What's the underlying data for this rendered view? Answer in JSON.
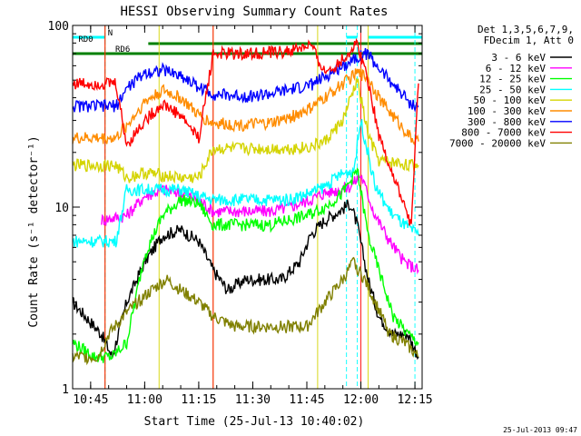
{
  "chart_data": {
    "type": "line",
    "title": "HESSI Observing Summary Count Rates",
    "xlabel": "Start Time (25-Jul-13 10:40:02)",
    "ylabel": "Count Rate (s⁻¹ detector⁻¹)",
    "y_scale": "log",
    "ylim": [
      1,
      100
    ],
    "xlim": [
      "10:40",
      "12:17"
    ],
    "x_ticks": [
      "10:45",
      "11:00",
      "11:15",
      "11:30",
      "11:45",
      "12:00",
      "12:15"
    ],
    "y_ticks": [
      "1",
      "10",
      "100"
    ],
    "grid": false,
    "legend_position": "right",
    "legend_header": [
      "Det 1,3,5,6,7,9,",
      "FDecim 1, Att 0"
    ],
    "footer": "25-Jul-2013 09:47",
    "series": [
      {
        "name": "3 - 6 keV",
        "color": "#000000",
        "x": [
          "10:40",
          "10:48",
          "10:51",
          "10:55",
          "11:00",
          "11:05",
          "11:10",
          "11:15",
          "11:19",
          "11:23",
          "11:28",
          "11:33",
          "11:38",
          "11:43",
          "11:46",
          "11:50",
          "11:54",
          "11:57",
          "11:59",
          "12:02",
          "12:05",
          "12:09",
          "12:13",
          "12:16"
        ],
        "y": [
          3.0,
          2.0,
          1.5,
          3.0,
          5.0,
          7.0,
          7.5,
          6.5,
          4.5,
          3.5,
          4.0,
          4.0,
          4.0,
          5.0,
          7.0,
          8.5,
          9.5,
          10.5,
          8.0,
          4.0,
          2.5,
          2.0,
          2.0,
          1.5
        ]
      },
      {
        "name": "6 - 12 keV",
        "color": "#ff00ff",
        "x": [
          "10:48",
          "10:55",
          "11:00",
          "11:05",
          "11:10",
          "11:15",
          "11:19",
          "11:25",
          "11:30",
          "11:35",
          "11:40",
          "11:46",
          "11:50",
          "11:54",
          "11:57",
          "12:00",
          "12:04",
          "12:08",
          "12:12",
          "12:16"
        ],
        "y": [
          8.5,
          9.0,
          11.5,
          12.5,
          12.0,
          11.0,
          9.5,
          9.5,
          9.5,
          9.5,
          10.0,
          11.0,
          12.0,
          12.5,
          13.0,
          15.0,
          9.0,
          6.5,
          5.0,
          4.5
        ]
      },
      {
        "name": "12 - 25 keV",
        "color": "#00ff00",
        "x": [
          "10:40",
          "10:46",
          "10:51",
          "10:55",
          "11:00",
          "11:05",
          "11:10",
          "11:15",
          "11:19",
          "11:25",
          "11:30",
          "11:35",
          "11:40",
          "11:45",
          "11:50",
          "11:55",
          "11:59",
          "12:02",
          "12:05",
          "12:09",
          "12:13",
          "12:16"
        ],
        "y": [
          1.8,
          1.5,
          1.5,
          1.8,
          5.5,
          9.0,
          11.0,
          10.5,
          8.0,
          8.0,
          8.0,
          8.0,
          8.5,
          9.0,
          10.0,
          12.0,
          16.0,
          7.0,
          4.5,
          2.5,
          2.0,
          1.8
        ]
      },
      {
        "name": "25 - 50 keV",
        "color": "#00ffff",
        "x": [
          "10:40",
          "10:48",
          "10:52",
          "10:55",
          "11:00",
          "11:05",
          "11:10",
          "11:15",
          "11:19",
          "11:25",
          "11:30",
          "11:35",
          "11:40",
          "11:46",
          "11:50",
          "11:54",
          "11:58",
          "12:00",
          "12:04",
          "12:08",
          "12:12",
          "12:16"
        ],
        "y": [
          6.5,
          6.5,
          6.5,
          12.5,
          12.5,
          12.5,
          12.5,
          11.5,
          11.0,
          11.0,
          11.0,
          11.0,
          11.0,
          12.0,
          13.0,
          15.0,
          16.0,
          30.0,
          13.0,
          9.5,
          8.0,
          7.0
        ]
      },
      {
        "name": "50 - 100 keV",
        "color": "#d4d400",
        "x": [
          "10:40",
          "10:48",
          "10:52",
          "10:55",
          "11:00",
          "11:05",
          "11:10",
          "11:15",
          "11:19",
          "11:25",
          "11:30",
          "11:35",
          "11:40",
          "11:46",
          "11:50",
          "11:55",
          "11:59",
          "12:02",
          "12:05",
          "12:10",
          "12:14",
          "12:16"
        ],
        "y": [
          17.0,
          17.0,
          17.0,
          14.5,
          15.5,
          15.0,
          14.5,
          14.5,
          21.0,
          21.0,
          21.0,
          21.0,
          21.0,
          21.5,
          23.0,
          30.0,
          50.0,
          25.0,
          18.0,
          17.5,
          17.0,
          17.0
        ]
      },
      {
        "name": "100 - 300 keV",
        "color": "#ff8c00",
        "x": [
          "10:40",
          "10:48",
          "10:52",
          "10:55",
          "11:00",
          "11:05",
          "11:10",
          "11:15",
          "11:19",
          "11:25",
          "11:30",
          "11:35",
          "11:40",
          "11:46",
          "11:50",
          "11:55",
          "11:59",
          "12:02",
          "12:05",
          "12:10",
          "12:14",
          "12:16"
        ],
        "y": [
          24.0,
          24.0,
          24.0,
          28.0,
          38.0,
          44.0,
          40.0,
          32.0,
          29.0,
          28.5,
          28.5,
          29.0,
          31.0,
          35.0,
          40.0,
          48.0,
          55.0,
          52.0,
          40.0,
          30.0,
          24.0,
          23.0
        ]
      },
      {
        "name": "300 - 800 keV",
        "color": "#0000ff",
        "x": [
          "10:40",
          "10:48",
          "10:52",
          "10:55",
          "11:00",
          "11:05",
          "11:10",
          "11:15",
          "11:19",
          "11:25",
          "11:30",
          "11:35",
          "11:40",
          "11:46",
          "11:50",
          "11:55",
          "11:59",
          "12:02",
          "12:05",
          "12:10",
          "12:14",
          "12:16"
        ],
        "y": [
          36.0,
          36.0,
          36.0,
          45.0,
          55.0,
          57.0,
          53.0,
          46.0,
          42.0,
          41.0,
          41.0,
          42.0,
          44.0,
          47.0,
          52.0,
          60.0,
          68.0,
          70.0,
          58.0,
          45.0,
          37.0,
          36.0
        ]
      },
      {
        "name": "800 - 7000 keV",
        "color": "#ff0000",
        "x": [
          "10:40",
          "10:48",
          "10:52",
          "10:55",
          "11:00",
          "11:05",
          "11:10",
          "11:15",
          "11:19",
          "11:25",
          "11:30",
          "11:35",
          "11:40",
          "11:46",
          "11:50",
          "11:55",
          "11:59",
          "12:02",
          "12:05",
          "12:10",
          "12:14",
          "12:16"
        ],
        "y": [
          48.0,
          48.0,
          48.0,
          22.0,
          30.0,
          37.0,
          32.0,
          24.0,
          70.0,
          70.0,
          70.0,
          71.0,
          72.0,
          78.0,
          55.0,
          65.0,
          80.0,
          50.0,
          25.0,
          13.0,
          8.0,
          48.0
        ]
      },
      {
        "name": "7000 - 20000 keV",
        "color": "#808000",
        "x": [
          "10:40",
          "10:47",
          "10:50",
          "10:54",
          "10:58",
          "11:02",
          "11:06",
          "11:10",
          "11:15",
          "11:19",
          "11:25",
          "11:30",
          "11:35",
          "11:40",
          "11:45",
          "11:50",
          "11:55",
          "11:58",
          "12:01",
          "12:04",
          "12:08",
          "12:12",
          "12:16"
        ],
        "y": [
          1.5,
          1.5,
          2.0,
          2.5,
          3.0,
          3.5,
          4.0,
          3.5,
          3.0,
          2.5,
          2.2,
          2.2,
          2.2,
          2.2,
          2.2,
          3.0,
          4.0,
          5.0,
          4.0,
          3.0,
          2.0,
          1.8,
          1.5
        ]
      }
    ],
    "state_bars": [
      {
        "name": "N",
        "color": "#00ffff",
        "segments": [
          [
            "10:40",
            "10:49"
          ],
          [
            "11:56",
            "11:59"
          ],
          [
            "12:02",
            "12:17"
          ]
        ]
      },
      {
        "name": "RD0",
        "color": "#008000",
        "segments": [
          [
            "11:01",
            "12:17"
          ]
        ]
      },
      {
        "name": "RD6",
        "color": "#008000",
        "segments": [
          [
            "10:40",
            "12:17"
          ]
        ]
      }
    ],
    "interval_lines": {
      "cyan": [
        "10:49",
        "11:56",
        "11:59",
        "12:15"
      ],
      "yellow": [
        "10:49",
        "11:04",
        "11:19",
        "11:48",
        "12:02"
      ],
      "red": [
        "10:49",
        "11:19",
        "12:00"
      ]
    }
  }
}
